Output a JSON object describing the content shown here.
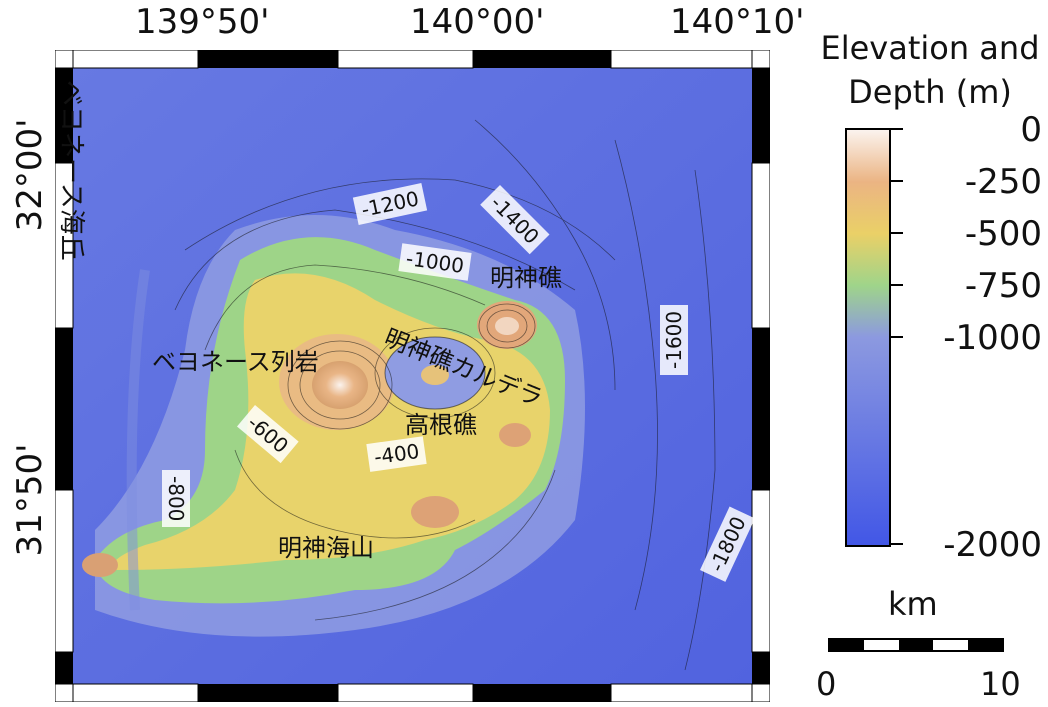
{
  "lon_labels": [
    "139°50'",
    "140°00'",
    "140°10'"
  ],
  "lat_labels": [
    "32°00'",
    "31°50'"
  ],
  "legend": {
    "title_line1": "Elevation and",
    "title_line2": "Depth (m)",
    "ticks": [
      "0",
      "-250",
      "-500",
      "-750",
      "-1000",
      "-2000"
    ],
    "colors": [
      "#fbf3ee",
      "#ebb483",
      "#ead067",
      "#9fd48a",
      "#8c99e0",
      "#4257e6"
    ]
  },
  "scale_bar": {
    "unit": "km",
    "start": "0",
    "end": "10"
  },
  "places": {
    "beyonesu_hill": "ベヨネース海丘",
    "beyonesu_rocks": "ベヨネース列岩",
    "myojin_reef": "明神礁",
    "myojin_caldera": "明神礁カルデラ",
    "takane_reef": "高根礁",
    "myojin_seamount": "明神海山"
  },
  "contours": {
    "c1200": "-1200",
    "c1400": "-1400",
    "c1000": "-1000",
    "c1600": "-1600",
    "c800": "-800",
    "c600": "-600",
    "c400": "-400",
    "c1800": "-1800"
  }
}
